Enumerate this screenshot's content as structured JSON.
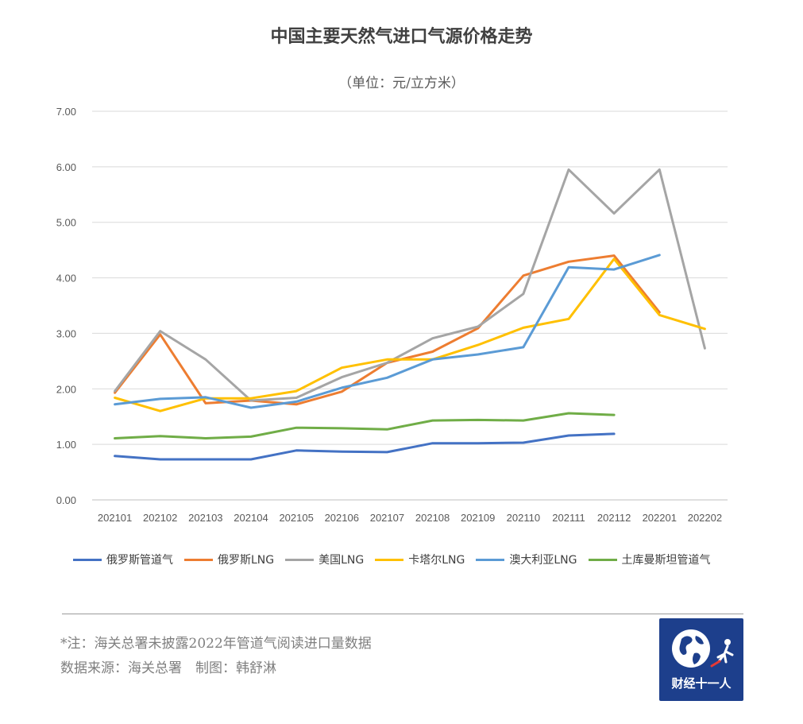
{
  "header": {
    "title": "中国主要天然气进口气源价格走势",
    "subtitle": "（单位：元/立方米）"
  },
  "chart_data": {
    "type": "line",
    "title": "中国主要天然气进口气源价格走势",
    "subtitle": "（单位：元/立方米）",
    "ylim": [
      0,
      7
    ],
    "yticks": [
      "0.00",
      "1.00",
      "2.00",
      "3.00",
      "4.00",
      "5.00",
      "6.00",
      "7.00"
    ],
    "categories": [
      "202101",
      "202102",
      "202103",
      "202104",
      "202105",
      "202106",
      "202107",
      "202108",
      "202109",
      "202110",
      "202111",
      "202112",
      "202201",
      "202202"
    ],
    "grid": true,
    "legend_position": "bottom",
    "series": [
      {
        "name": "俄罗斯管道气",
        "color": "#4472C4",
        "values": [
          0.79,
          0.73,
          0.73,
          0.73,
          0.89,
          0.87,
          0.86,
          1.02,
          1.02,
          1.03,
          1.16,
          1.19,
          null,
          null
        ]
      },
      {
        "name": "俄罗斯LNG",
        "color": "#ED7D31",
        "values": [
          1.93,
          2.98,
          1.74,
          1.79,
          1.72,
          1.95,
          2.47,
          2.67,
          3.09,
          4.04,
          4.29,
          4.4,
          3.38,
          null
        ]
      },
      {
        "name": "美国LNG",
        "color": "#A5A5A5",
        "values": [
          1.96,
          3.04,
          2.53,
          1.79,
          1.84,
          2.21,
          2.47,
          2.91,
          3.12,
          3.71,
          5.95,
          5.16,
          5.95,
          2.73
        ]
      },
      {
        "name": "卡塔尔LNG",
        "color": "#FFC000",
        "values": [
          1.84,
          1.6,
          1.83,
          1.83,
          1.96,
          2.38,
          2.53,
          2.53,
          2.79,
          3.1,
          3.26,
          4.34,
          3.33,
          3.08
        ]
      },
      {
        "name": "澳大利亚LNG",
        "color": "#5B9BD5",
        "values": [
          1.72,
          1.82,
          1.85,
          1.66,
          1.77,
          2.02,
          2.2,
          2.53,
          2.62,
          2.75,
          4.19,
          4.15,
          4.41,
          null
        ]
      },
      {
        "name": "土库曼斯坦管道气",
        "color": "#70AD47",
        "values": [
          1.11,
          1.15,
          1.11,
          1.14,
          1.3,
          1.29,
          1.27,
          1.43,
          1.44,
          1.43,
          1.56,
          1.53,
          null,
          null
        ]
      }
    ]
  },
  "notes": {
    "line1": "*注：海关总署未披露2022年管道气阅读进口量数据",
    "line2": "数据来源：海关总署　制图：韩舒淋"
  },
  "logo": {
    "text": "财经十一人",
    "icon": "globe-runner-icon"
  }
}
